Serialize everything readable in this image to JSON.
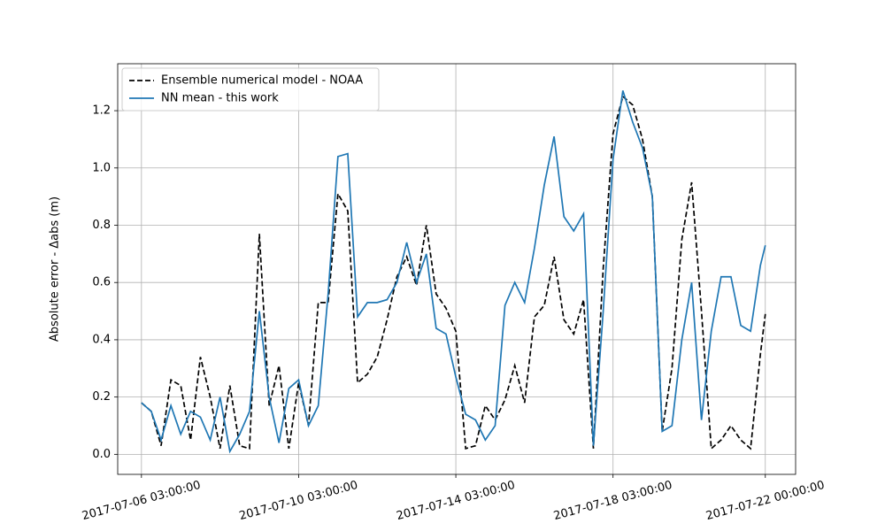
{
  "chart_data": {
    "type": "line",
    "ylabel": "Absolute error - Δabs (m)",
    "x": [
      "2017-07-06 03:00:00",
      "2017-07-06 09:00:00",
      "2017-07-06 15:00:00",
      "2017-07-06 21:00:00",
      "2017-07-07 03:00:00",
      "2017-07-07 09:00:00",
      "2017-07-07 15:00:00",
      "2017-07-07 21:00:00",
      "2017-07-08 03:00:00",
      "2017-07-08 09:00:00",
      "2017-07-08 15:00:00",
      "2017-07-08 21:00:00",
      "2017-07-09 03:00:00",
      "2017-07-09 09:00:00",
      "2017-07-09 15:00:00",
      "2017-07-09 21:00:00",
      "2017-07-10 03:00:00",
      "2017-07-10 09:00:00",
      "2017-07-10 15:00:00",
      "2017-07-10 21:00:00",
      "2017-07-11 03:00:00",
      "2017-07-11 09:00:00",
      "2017-07-11 15:00:00",
      "2017-07-11 21:00:00",
      "2017-07-12 03:00:00",
      "2017-07-12 09:00:00",
      "2017-07-12 15:00:00",
      "2017-07-12 21:00:00",
      "2017-07-13 03:00:00",
      "2017-07-13 09:00:00",
      "2017-07-13 15:00:00",
      "2017-07-13 21:00:00",
      "2017-07-14 03:00:00",
      "2017-07-14 09:00:00",
      "2017-07-14 15:00:00",
      "2017-07-14 21:00:00",
      "2017-07-15 03:00:00",
      "2017-07-15 09:00:00",
      "2017-07-15 15:00:00",
      "2017-07-15 21:00:00",
      "2017-07-16 03:00:00",
      "2017-07-16 09:00:00",
      "2017-07-16 15:00:00",
      "2017-07-16 21:00:00",
      "2017-07-17 03:00:00",
      "2017-07-17 09:00:00",
      "2017-07-17 15:00:00",
      "2017-07-17 21:00:00",
      "2017-07-18 03:00:00",
      "2017-07-18 09:00:00",
      "2017-07-18 15:00:00",
      "2017-07-18 21:00:00",
      "2017-07-19 03:00:00",
      "2017-07-19 09:00:00",
      "2017-07-19 15:00:00",
      "2017-07-19 21:00:00",
      "2017-07-20 03:00:00",
      "2017-07-20 09:00:00",
      "2017-07-20 15:00:00",
      "2017-07-20 21:00:00",
      "2017-07-21 03:00:00",
      "2017-07-21 09:00:00",
      "2017-07-21 15:00:00",
      "2017-07-21 21:00:00",
      "2017-07-22 00:00:00"
    ],
    "series": [
      {
        "name": "Ensemble numerical model - NOAA",
        "color": "#000000",
        "linestyle": "dashed",
        "values": [
          0.18,
          0.15,
          0.03,
          0.26,
          0.24,
          0.05,
          0.34,
          0.2,
          0.02,
          0.24,
          0.03,
          0.02,
          0.77,
          0.17,
          0.31,
          0.02,
          0.25,
          0.1,
          0.53,
          0.53,
          0.91,
          0.85,
          0.25,
          0.28,
          0.34,
          0.47,
          0.62,
          0.69,
          0.59,
          0.8,
          0.56,
          0.51,
          0.43,
          0.02,
          0.03,
          0.17,
          0.12,
          0.19,
          0.31,
          0.18,
          0.48,
          0.52,
          0.69,
          0.47,
          0.42,
          0.54,
          0.02,
          0.65,
          1.12,
          1.25,
          1.22,
          1.1,
          0.9,
          0.08,
          0.3,
          0.75,
          0.95,
          0.5,
          0.02,
          0.05,
          0.1,
          0.05,
          0.02,
          0.35,
          0.49
        ]
      },
      {
        "name": "NN mean - this work",
        "color": "#1f77b4",
        "linestyle": "solid",
        "values": [
          0.18,
          0.15,
          0.05,
          0.17,
          0.07,
          0.15,
          0.13,
          0.05,
          0.2,
          0.01,
          0.07,
          0.15,
          0.5,
          0.2,
          0.04,
          0.23,
          0.26,
          0.1,
          0.17,
          0.56,
          1.04,
          1.05,
          0.48,
          0.53,
          0.53,
          0.54,
          0.6,
          0.74,
          0.6,
          0.7,
          0.44,
          0.42,
          0.27,
          0.14,
          0.12,
          0.05,
          0.1,
          0.52,
          0.6,
          0.53,
          0.72,
          0.94,
          1.11,
          0.83,
          0.78,
          0.84,
          0.03,
          0.5,
          1.03,
          1.27,
          1.16,
          1.07,
          0.9,
          0.08,
          0.1,
          0.4,
          0.6,
          0.12,
          0.43,
          0.62,
          0.62,
          0.45,
          0.43,
          0.66,
          0.73
        ]
      }
    ],
    "xlim": [
      "2017-07-05 12:30:00",
      "2017-07-22 18:30:00"
    ],
    "xticks": [
      "2017-07-06 03:00:00",
      "2017-07-10 03:00:00",
      "2017-07-14 03:00:00",
      "2017-07-18 03:00:00",
      "2017-07-22 00:00:00"
    ],
    "ylim": [
      -0.07,
      1.364
    ],
    "yticks": [
      {
        "value": 0,
        "label": "0.0"
      },
      0.2,
      0.4,
      0.6,
      0.8,
      {
        "value": 1,
        "label": "1.0"
      },
      1.2
    ],
    "grid": true,
    "legend": "upper left"
  }
}
